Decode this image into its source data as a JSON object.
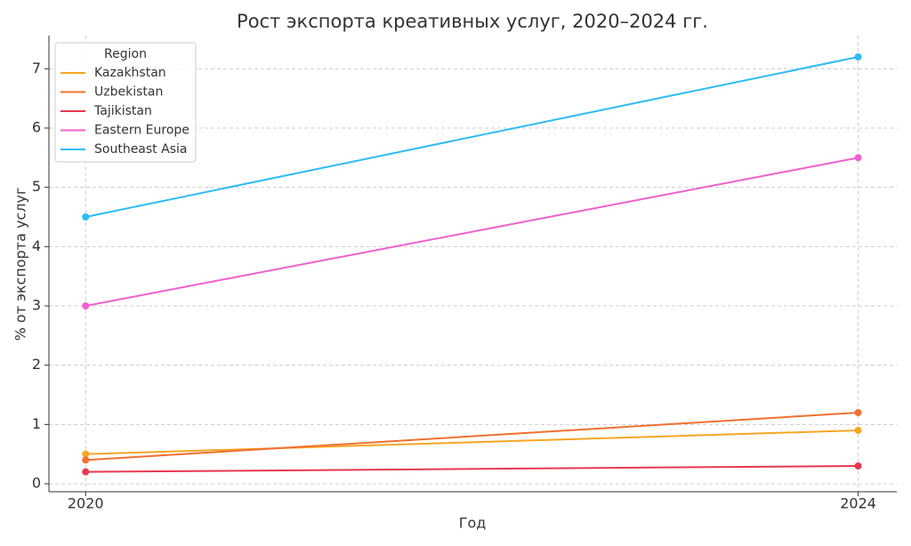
{
  "chart_data": {
    "type": "line",
    "title": "Рост экспорта креативных услуг, 2020–2024 гг.",
    "x_label": "Год",
    "y_label": "% от экспорта услуг",
    "x": [
      2020,
      2024
    ],
    "series": [
      {
        "name": "Kazakhstan",
        "color": "#f5a623",
        "values": [
          0.5,
          0.9
        ]
      },
      {
        "name": "Uzbekistan",
        "color": "#f07030",
        "values": [
          0.4,
          1.2
        ]
      },
      {
        "name": "Tajikistan",
        "color": "#e8384f",
        "values": [
          0.2,
          0.3
        ]
      },
      {
        "name": "Eastern Europe",
        "color": "#f05fcf",
        "values": [
          3.0,
          5.5
        ]
      },
      {
        "name": "Southeast Asia",
        "color": "#2bbcf5",
        "values": [
          4.5,
          7.2
        ]
      }
    ],
    "legend_title": "Region",
    "legend_position": "upper left",
    "xlim": [
      2019.81,
      2024.2
    ],
    "xticks": [
      2020,
      2024
    ],
    "ylim": [
      -0.135,
      7.56
    ],
    "yticks": [
      0,
      1,
      2,
      3,
      4,
      5,
      6,
      7
    ],
    "grid": true
  }
}
